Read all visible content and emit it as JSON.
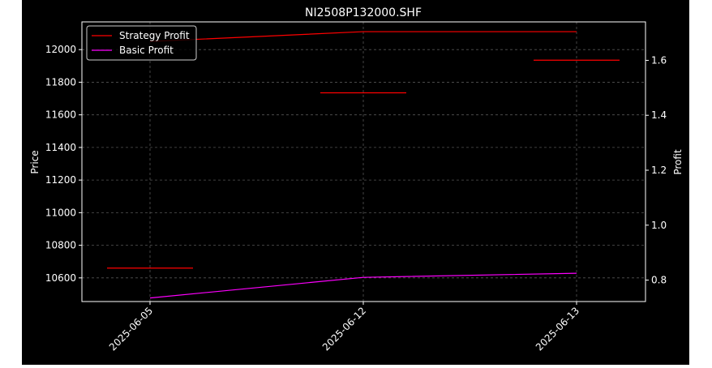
{
  "chart_data": {
    "type": "line",
    "title": "NI2508P132000.SHF",
    "ylabel_left": "Price",
    "ylabel_right": "Profit",
    "x_categories": [
      "2025-06-05",
      "2025-06-12",
      "2025-06-13"
    ],
    "y_left_ticks": [
      10600,
      10800,
      11000,
      11200,
      11400,
      11600,
      11800,
      12000
    ],
    "y_left_range": [
      10455,
      12170
    ],
    "y_right_ticks": [
      "0.8",
      "1.0",
      "1.2",
      "1.4",
      "1.6"
    ],
    "y_right_range": [
      0.722,
      1.74
    ],
    "grid": true,
    "legend_position": "top-left",
    "series": [
      {
        "name": "Strategy Profit",
        "color": "#ff0000",
        "axis": "left",
        "points": [
          [
            0,
            12050
          ],
          [
            1,
            12110
          ],
          [
            2,
            12110
          ]
        ]
      },
      {
        "name": "Basic Profit",
        "color": "#ff00ff",
        "axis": "right",
        "points": [
          [
            0,
            0.735
          ],
          [
            1,
            0.81
          ],
          [
            2,
            0.825
          ]
        ]
      }
    ],
    "price_markers": [
      {
        "x": 0,
        "value": 10660,
        "color": "#ff0000"
      },
      {
        "x": 1,
        "value": 11735,
        "color": "#ff0000"
      },
      {
        "x": 2,
        "value": 11935,
        "color": "#ff0000"
      }
    ]
  }
}
